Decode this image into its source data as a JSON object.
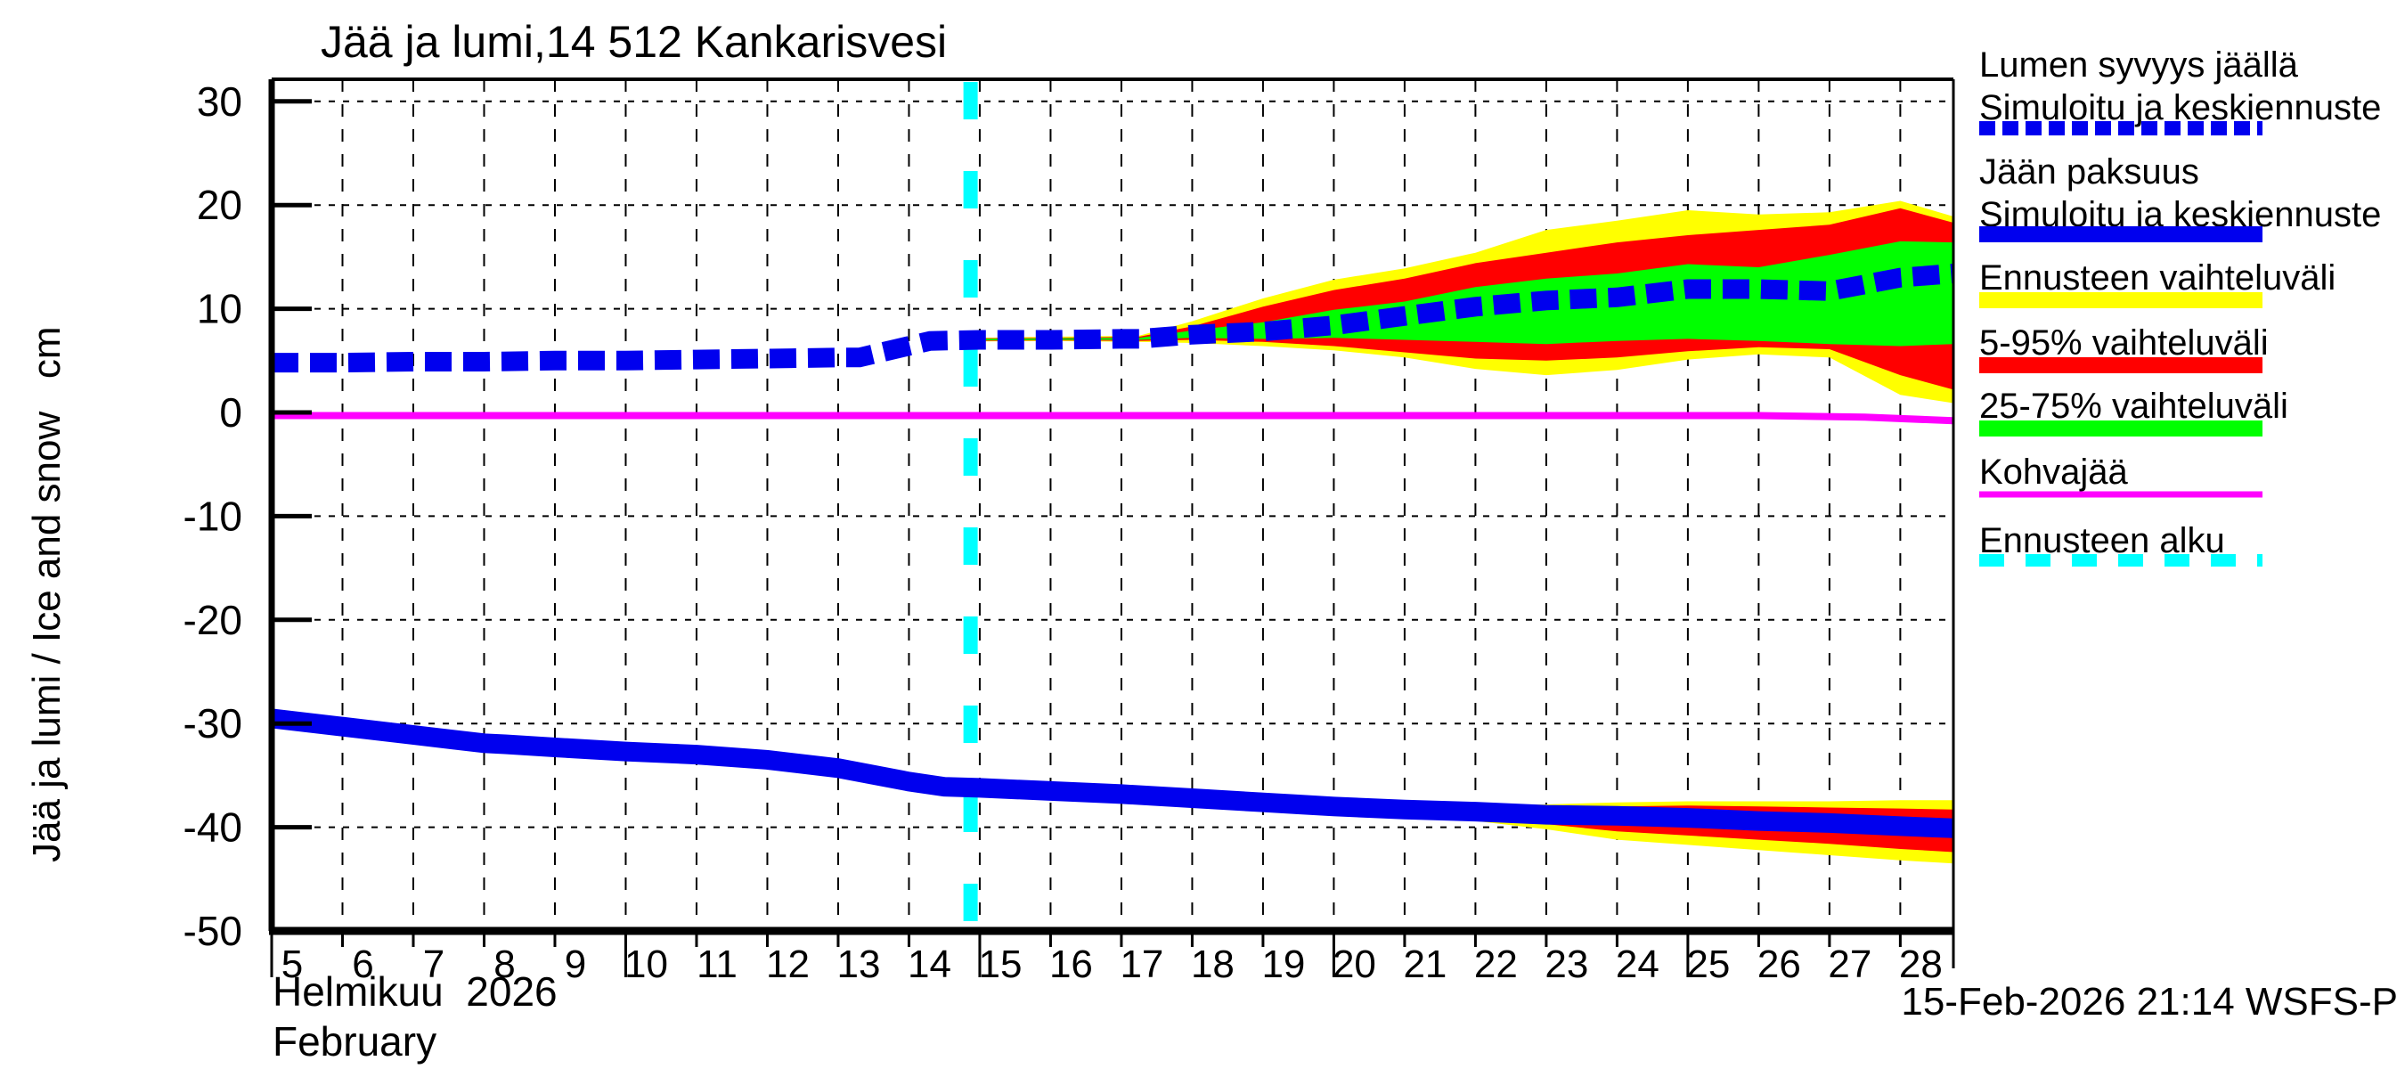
{
  "title": "Jää ja lumi,14 512 Kankarisvesi",
  "y_axis": {
    "label": "Jää ja lumi / Ice and snow   cm",
    "ticks": [
      30,
      20,
      10,
      0,
      -10,
      -20,
      -30,
      -40,
      -50
    ],
    "grid_values": [
      30,
      20,
      10,
      -10,
      -20,
      -30,
      -40
    ]
  },
  "x_axis": {
    "days": [
      5,
      6,
      7,
      8,
      9,
      10,
      11,
      12,
      13,
      14,
      15,
      16,
      17,
      18,
      19,
      20,
      21,
      22,
      23,
      24,
      25,
      26,
      27,
      28
    ],
    "long_tick_days": [
      5,
      10,
      15,
      20,
      25
    ],
    "month_label_fi": "Helmikuu  2026",
    "month_label_en": "February"
  },
  "footer": {
    "timestamp": "15-Feb-2026 21:14 WSFS-P"
  },
  "colors": {
    "median_blue": "#0000ee",
    "band_yellow": "#ffff00",
    "band_red": "#ff0000",
    "band_green": "#00ff00",
    "kohvajaa_magenta": "#ff00ff",
    "forecast_cyan": "#00ffff",
    "grid_black": "#000000",
    "background": "#ffffff"
  },
  "legend": [
    {
      "label1": "Lumen syvyys jäällä",
      "label2": "Simuloitu ja keskiennuste",
      "style": "dashed-thick",
      "color": "#0000ee"
    },
    {
      "label1": "Jään paksuus",
      "label2": "Simuloitu ja keskiennuste",
      "style": "solid-thick",
      "color": "#0000ee"
    },
    {
      "label1": "Ennusteen vaihteluväli",
      "label2": "",
      "style": "solid-thick",
      "color": "#ffff00"
    },
    {
      "label1": "5-95% vaihteluväli",
      "label2": "",
      "style": "solid-thick",
      "color": "#ff0000"
    },
    {
      "label1": "25-75% vaihteluväli",
      "label2": "",
      "style": "solid-thick",
      "color": "#00ff00"
    },
    {
      "label1": "Kohvajää",
      "label2": "",
      "style": "solid-thin",
      "color": "#ff00ff"
    },
    {
      "label1": "Ennusteen alku",
      "label2": "",
      "style": "dashed-thin",
      "color": "#00ffff"
    }
  ],
  "chart_data": {
    "type": "line",
    "title": "Jää ja lumi,14 512 Kankarisvesi",
    "xlabel": "Helmikuu 2026 / February (day of month)",
    "ylabel": "Jää ja lumi / Ice and snow (cm)",
    "xlim": [
      5,
      28.75
    ],
    "ylim": [
      -50,
      32
    ],
    "grid": true,
    "legend_position": "right-outside",
    "forecast_start_day": 14.87,
    "snow_depth_on_ice": {
      "history": {
        "days": [
          5,
          6,
          7,
          8,
          9,
          10,
          11,
          12,
          13,
          13.3,
          14.3,
          15,
          16,
          17,
          17.25
        ],
        "values": [
          4.8,
          4.8,
          4.9,
          4.9,
          5.0,
          5.0,
          5.1,
          5.2,
          5.3,
          5.3,
          6.9,
          7.0,
          7.0,
          7.1,
          7.1
        ]
      },
      "forecast": {
        "days": [
          15,
          16,
          17.25,
          18,
          19,
          20,
          21,
          22,
          23,
          24,
          25,
          26,
          27,
          28,
          28.75
        ],
        "max": [
          7.2,
          7.3,
          7.4,
          8.8,
          11.0,
          12.8,
          13.9,
          15.4,
          17.6,
          18.5,
          19.5,
          19.1,
          19.3,
          20.4,
          18.9
        ],
        "p95": [
          7.15,
          7.2,
          7.3,
          8.3,
          10.2,
          11.8,
          12.9,
          14.4,
          15.4,
          16.4,
          17.1,
          17.6,
          18.1,
          19.7,
          18.3
        ],
        "p75": [
          7.1,
          7.15,
          7.2,
          7.9,
          8.7,
          9.9,
          10.7,
          12.1,
          12.9,
          13.4,
          14.3,
          14.0,
          15.2,
          16.5,
          16.4
        ],
        "median": [
          7.0,
          7.05,
          7.1,
          7.5,
          7.8,
          8.4,
          9.3,
          10.2,
          10.8,
          11.1,
          11.9,
          11.9,
          11.7,
          13.0,
          13.4
        ],
        "p25": [
          6.95,
          7.0,
          7.0,
          7.2,
          7.1,
          7.2,
          7.0,
          6.8,
          6.6,
          6.9,
          7.1,
          6.9,
          6.6,
          6.4,
          6.6
        ],
        "p5": [
          6.9,
          6.95,
          6.9,
          7.0,
          6.8,
          6.4,
          5.8,
          5.2,
          5.0,
          5.3,
          5.9,
          6.3,
          6.1,
          3.6,
          2.2
        ],
        "min": [
          6.85,
          6.9,
          6.8,
          6.7,
          6.4,
          6.0,
          5.3,
          4.2,
          3.6,
          4.1,
          5.1,
          5.6,
          5.3,
          1.7,
          0.9
        ]
      }
    },
    "ice_thickness": {
      "history": {
        "days": [
          5,
          6,
          7,
          8,
          8.3,
          9,
          10,
          11,
          12,
          13,
          14,
          14.5,
          15,
          16,
          17,
          18,
          19,
          19.5
        ],
        "values": [
          -29.5,
          -30.3,
          -31.1,
          -31.9,
          -32.0,
          -32.3,
          -32.7,
          -33.0,
          -33.5,
          -34.3,
          -35.6,
          -36.1,
          -36.2,
          -36.5,
          -36.8,
          -37.2,
          -37.6,
          -37.8
        ]
      },
      "forecast": {
        "days": [
          19.5,
          20,
          21,
          22,
          23,
          24,
          25,
          26,
          27,
          28,
          28.75
        ],
        "max": [
          -37.75,
          -37.9,
          -38.0,
          -37.9,
          -37.8,
          -37.6,
          -37.5,
          -37.5,
          -37.5,
          -37.4,
          -37.4
        ],
        "p95": [
          -37.78,
          -38.0,
          -38.2,
          -38.1,
          -38.0,
          -38.0,
          -37.9,
          -38.0,
          -38.1,
          -38.2,
          -38.3
        ],
        "p75": [
          -37.78,
          -38.0,
          -38.2,
          -38.3,
          -38.4,
          -38.4,
          -38.5,
          -38.7,
          -38.9,
          -39.1,
          -39.2
        ],
        "median": [
          -37.8,
          -38.0,
          -38.3,
          -38.5,
          -38.8,
          -38.9,
          -39.1,
          -39.4,
          -39.6,
          -39.9,
          -40.1
        ],
        "p25": [
          -37.82,
          -38.1,
          -38.5,
          -38.8,
          -39.1,
          -39.4,
          -39.7,
          -40.0,
          -40.3,
          -40.7,
          -40.9
        ],
        "p5": [
          -37.82,
          -38.1,
          -38.6,
          -39.1,
          -39.7,
          -40.4,
          -40.8,
          -41.2,
          -41.6,
          -42.1,
          -42.4
        ],
        "min": [
          -37.85,
          -38.2,
          -38.7,
          -39.4,
          -40.2,
          -41.2,
          -41.7,
          -42.2,
          -42.7,
          -43.2,
          -43.5
        ]
      }
    },
    "kohvajaa": {
      "days": [
        5,
        26,
        27.5,
        28.75
      ],
      "values": [
        -0.3,
        -0.3,
        -0.45,
        -0.8
      ]
    }
  }
}
